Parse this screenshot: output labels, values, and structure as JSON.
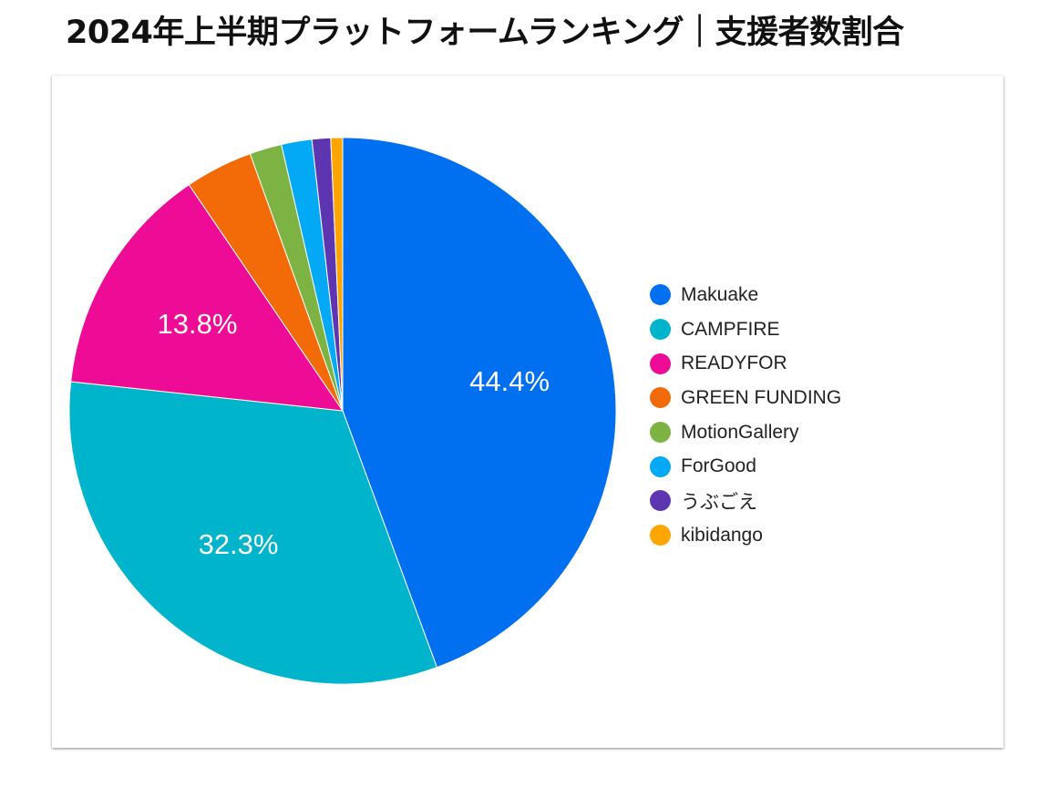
{
  "title": "2024年上半期プラットフォームランキング｜支援者数割合",
  "chart_data": {
    "type": "pie",
    "title": "2024年上半期プラットフォームランキング｜支援者数割合",
    "legend_position": "right",
    "slices": [
      {
        "name": "Makuake",
        "value": 44.4,
        "label": "44.4%",
        "color": "#0070f0"
      },
      {
        "name": "CAMPFIRE",
        "value": 32.3,
        "label": "32.3%",
        "color": "#00b5cb"
      },
      {
        "name": "READYFOR",
        "value": 13.8,
        "label": "13.8%",
        "color": "#ee0c96"
      },
      {
        "name": "GREEN FUNDING",
        "value": 4.0,
        "label": "",
        "color": "#f36a09"
      },
      {
        "name": "MotionGallery",
        "value": 1.9,
        "label": "",
        "color": "#7cb342"
      },
      {
        "name": "ForGood",
        "value": 1.8,
        "label": "",
        "color": "#03a9f4"
      },
      {
        "name": "うぶごえ",
        "value": 1.1,
        "label": "",
        "color": "#5e35b1"
      },
      {
        "name": "kibidango",
        "value": 0.7,
        "label": "",
        "color": "#ffa500"
      }
    ]
  }
}
